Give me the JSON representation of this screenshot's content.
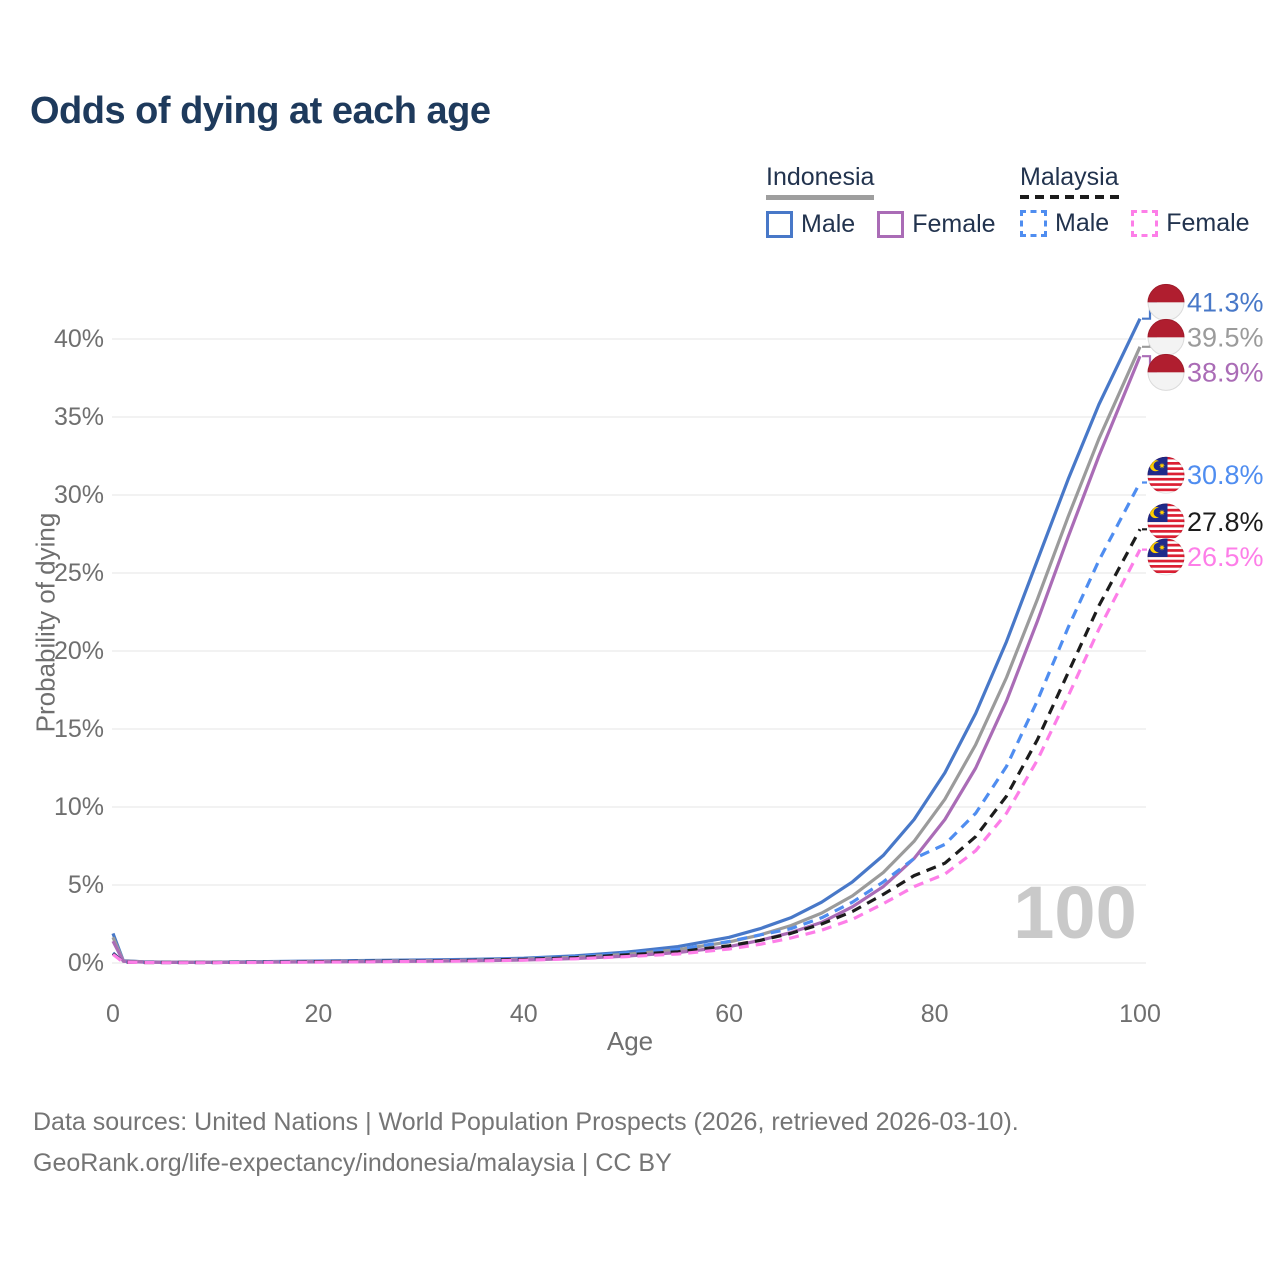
{
  "header": {
    "title": "Odds of dying at each age",
    "title_color": "#1e3a5c"
  },
  "legend": {
    "text_color": "#22334e",
    "groups": [
      {
        "name": "Indonesia",
        "line_style": "solid",
        "underline_color": "#9e9e9e",
        "items": [
          {
            "label": "Male",
            "color": "#4878c8"
          },
          {
            "label": "Female",
            "color": "#aa6cb6"
          }
        ]
      },
      {
        "name": "Malaysia",
        "line_style": "dashed",
        "underline_color": "#1c1c1c",
        "items": [
          {
            "label": "Male",
            "color": "#4f8df0"
          },
          {
            "label": "Female",
            "color": "#fd7ee8"
          }
        ]
      }
    ]
  },
  "chart_data": {
    "type": "line",
    "title": "Odds of dying at each age",
    "xlabel": "Age",
    "ylabel": "Probability of dying",
    "watermark": "100",
    "grid": "horizontal",
    "gridline_color": "#ededed",
    "xlim": [
      0,
      100
    ],
    "ylim": [
      0,
      42
    ],
    "x_ticks": [
      0,
      20,
      40,
      60,
      80,
      100
    ],
    "y_tick_values": [
      0,
      5,
      10,
      15,
      20,
      25,
      30,
      35,
      40
    ],
    "y_ticks": [
      "0%",
      "5%",
      "10%",
      "15%",
      "20%",
      "25%",
      "30%",
      "35%",
      "40%"
    ],
    "x": [
      0,
      1,
      3,
      5,
      10,
      15,
      20,
      25,
      30,
      35,
      40,
      45,
      50,
      55,
      60,
      63,
      66,
      69,
      72,
      75,
      78,
      81,
      84,
      87,
      90,
      93,
      96,
      100
    ],
    "series": [
      {
        "name": "Indonesia Male",
        "country": "Indonesia",
        "sex": "Male",
        "color": "#4878c8",
        "dash": false,
        "flag": "indonesia",
        "end_label": "41.3%",
        "values": [
          1.9,
          0.15,
          0.08,
          0.06,
          0.06,
          0.09,
          0.13,
          0.16,
          0.19,
          0.23,
          0.31,
          0.46,
          0.7,
          1.05,
          1.65,
          2.2,
          2.9,
          3.9,
          5.2,
          6.9,
          9.2,
          12.2,
          16.0,
          20.6,
          25.8,
          31.0,
          35.8,
          41.3
        ]
      },
      {
        "name": "Indonesia Both sexes",
        "country": "Indonesia",
        "sex": "Both",
        "color": "#9b9b9b",
        "dash": false,
        "flag": "indonesia",
        "end_label": "39.5%",
        "values": [
          1.65,
          0.13,
          0.07,
          0.05,
          0.05,
          0.07,
          0.1,
          0.12,
          0.15,
          0.18,
          0.25,
          0.37,
          0.56,
          0.85,
          1.35,
          1.8,
          2.4,
          3.2,
          4.3,
          5.8,
          7.8,
          10.5,
          14.0,
          18.3,
          23.3,
          28.6,
          33.6,
          39.5
        ]
      },
      {
        "name": "Indonesia Female",
        "country": "Indonesia",
        "sex": "Female",
        "color": "#aa6cb6",
        "dash": false,
        "flag": "indonesia",
        "end_label": "38.9%",
        "values": [
          1.4,
          0.11,
          0.06,
          0.04,
          0.04,
          0.05,
          0.07,
          0.09,
          0.11,
          0.14,
          0.19,
          0.29,
          0.44,
          0.67,
          1.05,
          1.45,
          1.95,
          2.6,
          3.6,
          4.9,
          6.7,
          9.2,
          12.5,
          16.8,
          21.9,
          27.3,
          32.5,
          38.9
        ]
      },
      {
        "name": "Malaysia Male",
        "country": "Malaysia",
        "sex": "Male",
        "color": "#4f8df0",
        "dash": true,
        "flag": "malaysia",
        "end_label": "30.8%",
        "values": [
          0.65,
          0.06,
          0.04,
          0.03,
          0.03,
          0.07,
          0.11,
          0.13,
          0.16,
          0.2,
          0.27,
          0.41,
          0.63,
          0.88,
          1.38,
          1.8,
          2.2,
          2.9,
          3.9,
          5.2,
          6.7,
          7.6,
          9.6,
          12.6,
          16.8,
          21.5,
          25.8,
          30.8
        ]
      },
      {
        "name": "Malaysia Both sexes",
        "country": "Malaysia",
        "sex": "Both",
        "color": "#1c1c1c",
        "dash": true,
        "flag": "malaysia",
        "end_label": "27.8%",
        "values": [
          0.6,
          0.05,
          0.03,
          0.03,
          0.03,
          0.06,
          0.09,
          0.11,
          0.13,
          0.17,
          0.23,
          0.34,
          0.52,
          0.72,
          1.1,
          1.45,
          1.9,
          2.5,
          3.3,
          4.4,
          5.6,
          6.4,
          8.1,
          10.7,
          14.3,
          18.6,
          22.9,
          27.8
        ]
      },
      {
        "name": "Malaysia Female",
        "country": "Malaysia",
        "sex": "Female",
        "color": "#fd7ee8",
        "dash": true,
        "flag": "malaysia",
        "end_label": "26.5%",
        "values": [
          0.55,
          0.05,
          0.03,
          0.02,
          0.02,
          0.04,
          0.06,
          0.08,
          0.1,
          0.13,
          0.18,
          0.27,
          0.41,
          0.58,
          0.9,
          1.2,
          1.6,
          2.1,
          2.8,
          3.8,
          4.9,
          5.7,
          7.2,
          9.6,
          13.0,
          17.1,
          21.4,
          26.5
        ]
      }
    ]
  },
  "flags": {
    "indonesia": {
      "red": "#b01e2f",
      "white": "#f3f3f3"
    },
    "malaysia": {
      "red": "#dc1f33",
      "white": "#ffffff",
      "blue": "#1f2a8a",
      "yellow": "#ffcf00"
    }
  },
  "footer": {
    "line1": "Data sources: United Nations | World Population Prospects (2026, retrieved 2026-03-10).",
    "line2": "GeoRank.org/life-expectancy/indonesia/malaysia | CC BY"
  }
}
